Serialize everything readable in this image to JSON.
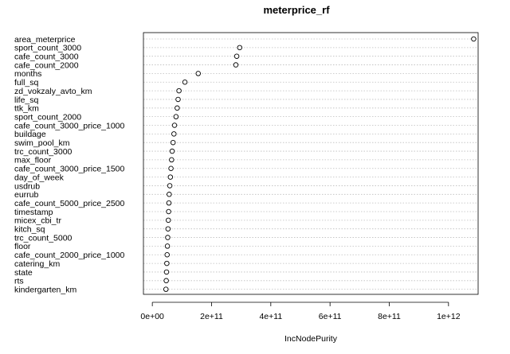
{
  "chart_data": {
    "type": "scatter",
    "title": "meterprice_rf",
    "xlabel": "IncNodePurity",
    "ylabel": "",
    "xlim": [
      -30000000000.0,
      1100000000000.0
    ],
    "xticks": [
      {
        "value": 0,
        "label": "0e+00"
      },
      {
        "value": 200000000000.0,
        "label": "2e+11"
      },
      {
        "value": 400000000000.0,
        "label": "4e+11"
      },
      {
        "value": 600000000000.0,
        "label": "6e+11"
      },
      {
        "value": 800000000000.0,
        "label": "8e+11"
      },
      {
        "value": 1000000000000.0,
        "label": "1e+12"
      }
    ],
    "grid": true,
    "variables": [
      {
        "name": "area_meterprice",
        "value": 1085000000000.0
      },
      {
        "name": "sport_count_3000",
        "value": 295000000000.0
      },
      {
        "name": "cafe_count_3000",
        "value": 285000000000.0
      },
      {
        "name": "cafe_count_2000",
        "value": 282000000000.0
      },
      {
        "name": "months",
        "value": 155000000000.0
      },
      {
        "name": "full_sq",
        "value": 110000000000.0
      },
      {
        "name": "zd_vokzaly_avto_km",
        "value": 90000000000.0
      },
      {
        "name": "life_sq",
        "value": 87000000000.0
      },
      {
        "name": "ttk_km",
        "value": 84000000000.0
      },
      {
        "name": "sport_count_2000",
        "value": 80000000000.0
      },
      {
        "name": "cafe_count_3000_price_1000",
        "value": 75000000000.0
      },
      {
        "name": "buildage",
        "value": 73000000000.0
      },
      {
        "name": "swim_pool_km",
        "value": 70000000000.0
      },
      {
        "name": "trc_count_3000",
        "value": 67000000000.0
      },
      {
        "name": "max_floor",
        "value": 65000000000.0
      },
      {
        "name": "cafe_count_3000_price_1500",
        "value": 63000000000.0
      },
      {
        "name": "day_of_week",
        "value": 61000000000.0
      },
      {
        "name": "usdrub",
        "value": 59000000000.0
      },
      {
        "name": "eurrub",
        "value": 57000000000.0
      },
      {
        "name": "cafe_count_5000_price_2500",
        "value": 56000000000.0
      },
      {
        "name": "timestamp",
        "value": 55000000000.0
      },
      {
        "name": "micex_cbi_tr",
        "value": 54000000000.0
      },
      {
        "name": "kitch_sq",
        "value": 53000000000.0
      },
      {
        "name": "trc_count_5000",
        "value": 52000000000.0
      },
      {
        "name": "floor",
        "value": 51000000000.0
      },
      {
        "name": "cafe_count_2000_price_1000",
        "value": 50000000000.0
      },
      {
        "name": "catering_km",
        "value": 49000000000.0
      },
      {
        "name": "state",
        "value": 48000000000.0
      },
      {
        "name": "rts",
        "value": 47000000000.0
      },
      {
        "name": "kindergarten_km",
        "value": 46000000000.0
      }
    ]
  }
}
